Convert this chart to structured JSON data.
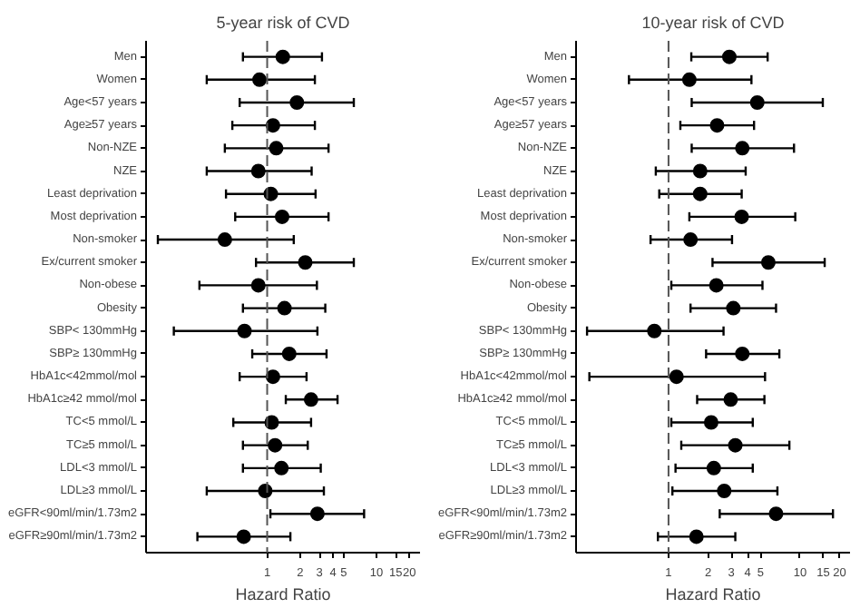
{
  "chart_data": [
    {
      "type": "scatter",
      "title": "5-year risk of CVD",
      "xlabel": "Hazard Ratio",
      "orientation": "horizontal",
      "log": "x",
      "grid": false,
      "marker": "circle",
      "color": "#000000",
      "categories": [
        "Men",
        "Women",
        "Age<57 years",
        "Age≥57 years",
        "Non-NZE",
        "NZE",
        "Least deprivation",
        "Most deprivation",
        "Non-smoker",
        "Ex/current smoker",
        "Non-obese",
        "Obesity",
        "SBP< 130mmHg",
        "SBP≥ 130mmHg",
        "HbA1c<42mmol/mol",
        "HbA1c≥42 mmol/mol",
        "TC<5 mmol/L",
        "TC≥5 mmol/L",
        "LDL<3 mmol/L",
        "LDL≥3 mmol/L",
        "eGFR<90ml/min/1.73m2",
        "eGFR≥90ml/min/1.73m2"
      ],
      "values": [
        1.39,
        0.85,
        1.87,
        1.13,
        1.21,
        0.83,
        1.08,
        1.37,
        0.41,
        2.23,
        0.83,
        1.44,
        0.62,
        1.59,
        1.13,
        2.52,
        1.1,
        1.18,
        1.35,
        0.96,
        2.88,
        0.61
      ],
      "errors": [
        [
          0.6,
          3.17
        ],
        [
          0.28,
          2.73
        ],
        [
          0.56,
          6.2
        ],
        [
          0.48,
          2.73
        ],
        [
          0.41,
          3.64
        ],
        [
          0.28,
          2.55
        ],
        [
          0.42,
          2.77
        ],
        [
          0.51,
          3.64
        ],
        [
          0.1,
          1.75
        ],
        [
          0.79,
          6.2
        ],
        [
          0.24,
          2.85
        ],
        [
          0.6,
          3.4
        ],
        [
          0.14,
          2.88
        ],
        [
          0.73,
          3.49
        ],
        [
          0.56,
          2.29
        ],
        [
          1.48,
          4.4
        ],
        [
          0.49,
          2.52
        ],
        [
          0.6,
          2.35
        ],
        [
          0.6,
          3.09
        ],
        [
          0.28,
          3.3
        ],
        [
          1.07,
          7.7
        ],
        [
          0.23,
          1.63
        ]
      ],
      "xlim": [
        0.078,
        25
      ],
      "xticks": [
        1,
        2,
        3,
        4,
        5,
        10,
        15,
        20
      ],
      "ref_lines": [
        {
          "axis": "x",
          "value": 1,
          "line_style": "dashed",
          "color": "#555555"
        }
      ]
    },
    {
      "type": "scatter",
      "title": "10-year risk of CVD",
      "xlabel": "Hazard Ratio",
      "orientation": "horizontal",
      "log": "x",
      "grid": false,
      "marker": "circle",
      "color": "#000000",
      "categories": [
        "Men",
        "Women",
        "Age<57 years",
        "Age≥57 years",
        "Non-NZE",
        "NZE",
        "Least deprivation",
        "Most deprivation",
        "Non-smoker",
        "Ex/current smoker",
        "Non-obese",
        "Obesity",
        "SBP< 130mmHg",
        "SBP≥ 130mmHg",
        "HbA1c<42mmol/mol",
        "HbA1c≥42 mmol/mol",
        "TC<5 mmol/L",
        "TC≥5 mmol/L",
        "LDL<3 mmol/L",
        "LDL≥3 mmol/L",
        "eGFR<90ml/min/1.73m2",
        "eGFR≥90ml/min/1.73m2"
      ],
      "values": [
        2.9,
        1.44,
        4.73,
        2.34,
        3.64,
        1.74,
        1.74,
        3.6,
        1.47,
        5.74,
        2.31,
        3.11,
        0.78,
        3.64,
        1.15,
        2.97,
        2.11,
        3.22,
        2.21,
        2.65,
        6.57,
        1.63
      ],
      "errors": [
        [
          1.49,
          5.67
        ],
        [
          0.5,
          4.27
        ],
        [
          1.5,
          14.9
        ],
        [
          1.23,
          4.47
        ],
        [
          1.5,
          9.0
        ],
        [
          0.8,
          3.86
        ],
        [
          0.85,
          3.6
        ],
        [
          1.44,
          9.2
        ],
        [
          0.73,
          3.04
        ],
        [
          2.16,
          15.4
        ],
        [
          1.05,
          5.18
        ],
        [
          1.47,
          6.57
        ],
        [
          0.24,
          2.62
        ],
        [
          1.93,
          6.96
        ],
        [
          0.25,
          5.42
        ],
        [
          1.65,
          5.36
        ],
        [
          1.05,
          4.37
        ],
        [
          1.25,
          8.3
        ],
        [
          1.13,
          4.37
        ],
        [
          1.07,
          6.73
        ],
        [
          2.45,
          17.8
        ],
        [
          0.83,
          3.22
        ]
      ],
      "xlim": [
        0.198,
        24
      ],
      "xticks": [
        1,
        2,
        3,
        4,
        5,
        10,
        15,
        20
      ],
      "ref_lines": [
        {
          "axis": "x",
          "value": 1,
          "line_style": "dashed",
          "color": "#555555"
        }
      ]
    }
  ]
}
